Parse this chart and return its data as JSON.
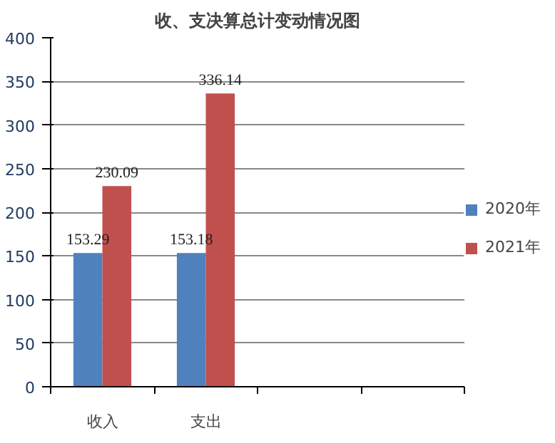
{
  "chart_data": {
    "type": "bar",
    "title": "收、支决算总计变动情况图",
    "categories": [
      "收入",
      "支出",
      null,
      null
    ],
    "series": [
      {
        "name": "2020年",
        "color": "#4f81bd",
        "values": [
          153.29,
          153.18,
          null,
          null
        ]
      },
      {
        "name": "2021年",
        "color": "#c0504d",
        "values": [
          230.09,
          336.14,
          null,
          null
        ]
      }
    ],
    "ylim": [
      0,
      400
    ],
    "yticks": [
      0,
      50,
      100,
      150,
      200,
      250,
      300,
      350,
      400
    ],
    "grid": "y",
    "legend": "right",
    "data_labels": true
  }
}
